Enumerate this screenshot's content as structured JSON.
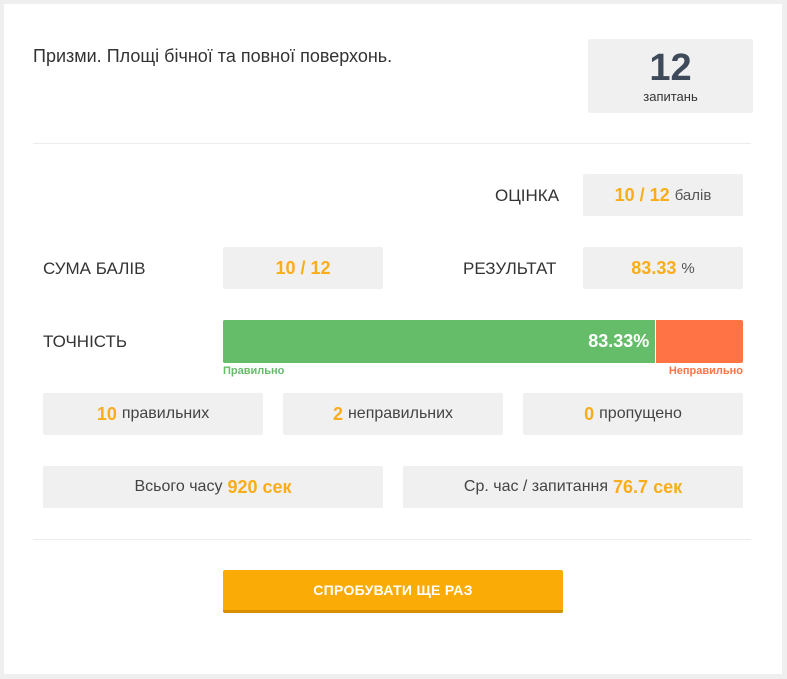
{
  "quiz": {
    "title": "Призми. Площі бічної та повної поверхонь.",
    "question_count": "12",
    "question_count_label": "запитань"
  },
  "grade": {
    "label": "ОЦІНКА",
    "value": "10 / 12",
    "unit": "балів"
  },
  "score_sum": {
    "label": "СУМА БАЛІВ",
    "value": "10 / 12"
  },
  "result": {
    "label": "РЕЗУЛЬТАТ",
    "value": "83.33",
    "unit": "%"
  },
  "accuracy": {
    "label": "ТОЧНІСТЬ",
    "percent_text": "83.33%",
    "correct_fraction": 0.8333,
    "correct_label": "Правильно",
    "incorrect_label": "Неправильно",
    "correct_color": "#65bd6a",
    "incorrect_color": "#ff7345"
  },
  "counts": {
    "correct": {
      "value": "10",
      "label": "правильних"
    },
    "incorrect": {
      "value": "2",
      "label": "неправильних"
    },
    "skipped": {
      "value": "0",
      "label": "пропущено"
    }
  },
  "time": {
    "total_label": "Всього часу",
    "total_value": "920 сек",
    "avg_label": "Ср. час / запитання",
    "avg_value": "76.7 сек"
  },
  "retry_button": "СПРОБУВАТИ ЩЕ РАЗ",
  "colors": {
    "accent": "#f9ad1a",
    "button": "#fbab05"
  }
}
